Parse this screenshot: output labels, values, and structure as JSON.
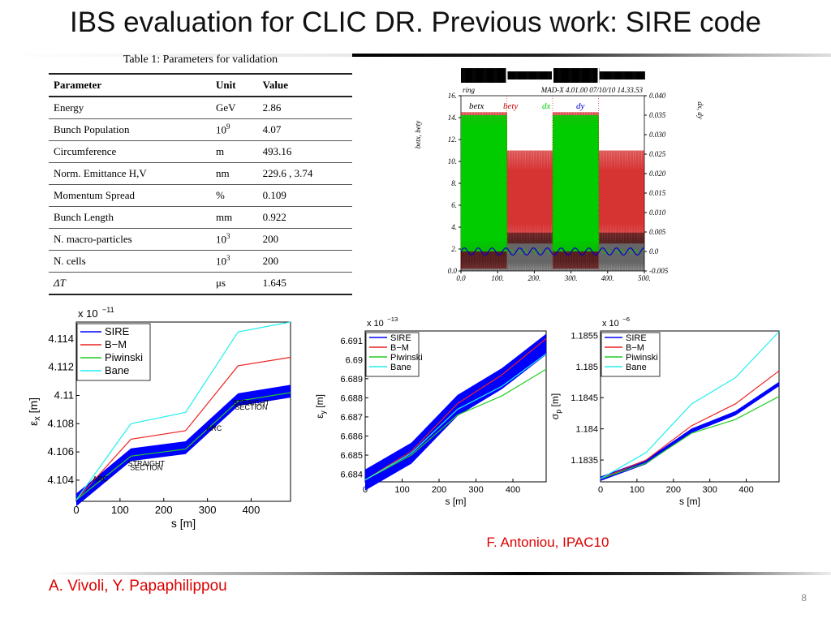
{
  "slide": {
    "title": "IBS evaluation for CLIC DR. Previous work: SIRE code",
    "credit_right": "F. Antoniou, IPAC10",
    "credit_left": "A. Vivoli, Y. Papaphilippou",
    "page_number": "8"
  },
  "table": {
    "caption": "Table 1: Parameters for validation",
    "headers": [
      "Parameter",
      "Unit",
      "Value"
    ],
    "rows": [
      {
        "param": "Energy",
        "unit": "GeV",
        "unit_exp": "",
        "value": "2.86"
      },
      {
        "param": "Bunch Population",
        "unit": "10",
        "unit_exp": "9",
        "value": "4.07"
      },
      {
        "param": "Circumference",
        "unit": "m",
        "unit_exp": "",
        "value": "493.16"
      },
      {
        "param": "Norm. Emittance  H,V",
        "unit": "nm",
        "unit_exp": "",
        "value": "229.6 , 3.74"
      },
      {
        "param": "Momentum Spread",
        "unit": "%",
        "unit_exp": "",
        "value": "0.109"
      },
      {
        "param": "Bunch Length",
        "unit": "mm",
        "unit_exp": "",
        "value": "0.922"
      },
      {
        "param": "N. macro-particles",
        "unit": "10",
        "unit_exp": "3",
        "value": "200"
      },
      {
        "param": "N. cells",
        "unit": "10",
        "unit_exp": "3",
        "value": "200"
      },
      {
        "param": "ΔT",
        "unit": "μs",
        "unit_exp": "",
        "value": "1.645"
      }
    ]
  },
  "chart_data": [
    {
      "id": "madx",
      "type": "line",
      "header_left": "ring",
      "header_right": "MAD-X 4.01.00  07/10/10 14.33.53",
      "ylabel_left": "betx, bety",
      "ylabel_right": "dx, dy",
      "x_ticks": [
        "0.0",
        "100.",
        "200.",
        "300.",
        "400.",
        "500."
      ],
      "y_left_ticks": [
        "0.0",
        "2.",
        "4.",
        "6.",
        "8.",
        "10.",
        "12.",
        "14.",
        "16."
      ],
      "y_right_ticks": [
        "-0.005",
        "0.0",
        "0.005",
        "0.010",
        "0.015",
        "0.020",
        "0.025",
        "0.030",
        "0.035",
        "0.040"
      ],
      "xlim": [
        0,
        500
      ],
      "ylim_left": [
        0,
        16
      ],
      "ylim_right": [
        -0.005,
        0.04
      ],
      "legend": [
        "betx",
        "bety",
        "dx",
        "dy"
      ],
      "colors": {
        "betx": "#000000",
        "bety": "#cc0000",
        "dx": "#00cc00",
        "dy": "#0000cc"
      },
      "arc_regions": [
        [
          0,
          125
        ],
        [
          250,
          375
        ]
      ],
      "straight_regions": [
        [
          125,
          250
        ],
        [
          375,
          500
        ]
      ],
      "betx_range_arc": [
        0,
        4
      ],
      "betx_range_straight": [
        0,
        3.5
      ],
      "bety_range_arc": [
        0.2,
        14.5
      ],
      "bety_range_straight": [
        2.5,
        11
      ],
      "dx_range_arc": [
        0.0,
        0.035
      ],
      "dy_level": 0.0
    },
    {
      "id": "emit_x",
      "type": "line",
      "exponent_label": "x 10",
      "exponent": "−11",
      "ylabel": "ε",
      "ylabel_sub": "x",
      "ylabel_unit": " [m]",
      "xlabel": "s [m]",
      "xlim": [
        0,
        490
      ],
      "ylim": [
        4.1025,
        4.1152
      ],
      "x_ticks": [
        0,
        100,
        200,
        300,
        400
      ],
      "y_ticks": [
        "4.104",
        "4.106",
        "4.108",
        "4.11",
        "4.112",
        "4.114"
      ],
      "y_tick_values": [
        4.104,
        4.106,
        4.108,
        4.11,
        4.112,
        4.114
      ],
      "x": [
        0,
        125,
        250,
        370,
        490
      ],
      "series": [
        {
          "name": "SIRE",
          "color": "#0000ff",
          "band": 0.0009,
          "values": [
            4.1026,
            4.1058,
            4.1063,
            4.1097,
            4.1103
          ]
        },
        {
          "name": "B−M",
          "color": "#ee2222",
          "values": [
            4.1026,
            4.1069,
            4.1075,
            4.1121,
            4.1127
          ]
        },
        {
          "name": "Piwinski",
          "color": "#22cc22",
          "values": [
            4.1026,
            4.1057,
            4.1062,
            4.1096,
            4.1102
          ]
        },
        {
          "name": "Bane",
          "color": "#22eeee",
          "values": [
            4.1026,
            4.108,
            4.1088,
            4.1145,
            4.1152
          ]
        }
      ],
      "annotations": [
        {
          "text": "ARC",
          "x": 55,
          "y": 4.1039
        },
        {
          "text": "STRAIGHT",
          "x": 160,
          "y": 4.105
        },
        {
          "text": "SECTION",
          "x": 160,
          "y": 4.1047
        },
        {
          "text": "ARC",
          "x": 315,
          "y": 4.1075
        },
        {
          "text": "STRAIGHT",
          "x": 400,
          "y": 4.1093
        },
        {
          "text": "SECTION",
          "x": 400,
          "y": 4.109
        }
      ]
    },
    {
      "id": "emit_y",
      "type": "line",
      "exponent_label": "x 10",
      "exponent": "−13",
      "ylabel": "ε",
      "ylabel_sub": "y",
      "ylabel_unit": " [m]",
      "xlabel": "s [m]",
      "xlim": [
        0,
        490
      ],
      "ylim": [
        6.6836,
        6.6915
      ],
      "x_ticks": [
        0,
        100,
        200,
        300,
        400
      ],
      "y_ticks": [
        "6.684",
        "6.685",
        "6.686",
        "6.687",
        "6.688",
        "6.689",
        "6.69",
        "6.691"
      ],
      "y_tick_values": [
        6.684,
        6.685,
        6.686,
        6.687,
        6.688,
        6.689,
        6.69,
        6.691
      ],
      "x": [
        0,
        125,
        250,
        370,
        490
      ],
      "series": [
        {
          "name": "SIRE",
          "color": "#0000ff",
          "band": 0.0011,
          "values": [
            6.6837,
            6.6851,
            6.6876,
            6.689,
            6.6908
          ]
        },
        {
          "name": "B−M",
          "color": "#ee2222",
          "values": [
            6.6837,
            6.6852,
            6.6877,
            6.6892,
            6.6911
          ]
        },
        {
          "name": "Piwinski",
          "color": "#22cc22",
          "values": [
            6.6837,
            6.685,
            6.6871,
            6.6881,
            6.6895
          ]
        },
        {
          "name": "Bane",
          "color": "#22eeee",
          "values": [
            6.6837,
            6.6851,
            6.6874,
            6.6886,
            6.6903
          ]
        }
      ]
    },
    {
      "id": "sigma_p",
      "type": "line",
      "exponent_label": "x 10",
      "exponent": "−6",
      "ylabel": "σ",
      "ylabel_sub": "p",
      "ylabel_unit": " [m]",
      "xlabel": "s [m]",
      "xlim": [
        0,
        490
      ],
      "ylim": [
        1.18315,
        1.18557
      ],
      "x_ticks": [
        0,
        100,
        200,
        300,
        400
      ],
      "y_ticks": [
        "1.1835",
        "1.184",
        "1.1845",
        "1.185",
        "1.1855"
      ],
      "y_tick_values": [
        1.1835,
        1.184,
        1.1845,
        1.185,
        1.1855
      ],
      "x": [
        0,
        125,
        250,
        370,
        490
      ],
      "series": [
        {
          "name": "SIRE",
          "color": "#0000ff",
          "band": 7e-05,
          "values": [
            1.1832,
            1.18347,
            1.18397,
            1.18425,
            1.18472
          ]
        },
        {
          "name": "B−M",
          "color": "#ee2222",
          "values": [
            1.1832,
            1.1835,
            1.18405,
            1.1844,
            1.18493
          ]
        },
        {
          "name": "Piwinski",
          "color": "#22cc22",
          "values": [
            1.1832,
            1.18345,
            1.18393,
            1.18415,
            1.18452
          ]
        },
        {
          "name": "Bane",
          "color": "#22eeee",
          "values": [
            1.1832,
            1.18362,
            1.1844,
            1.18482,
            1.18556
          ]
        }
      ]
    }
  ]
}
